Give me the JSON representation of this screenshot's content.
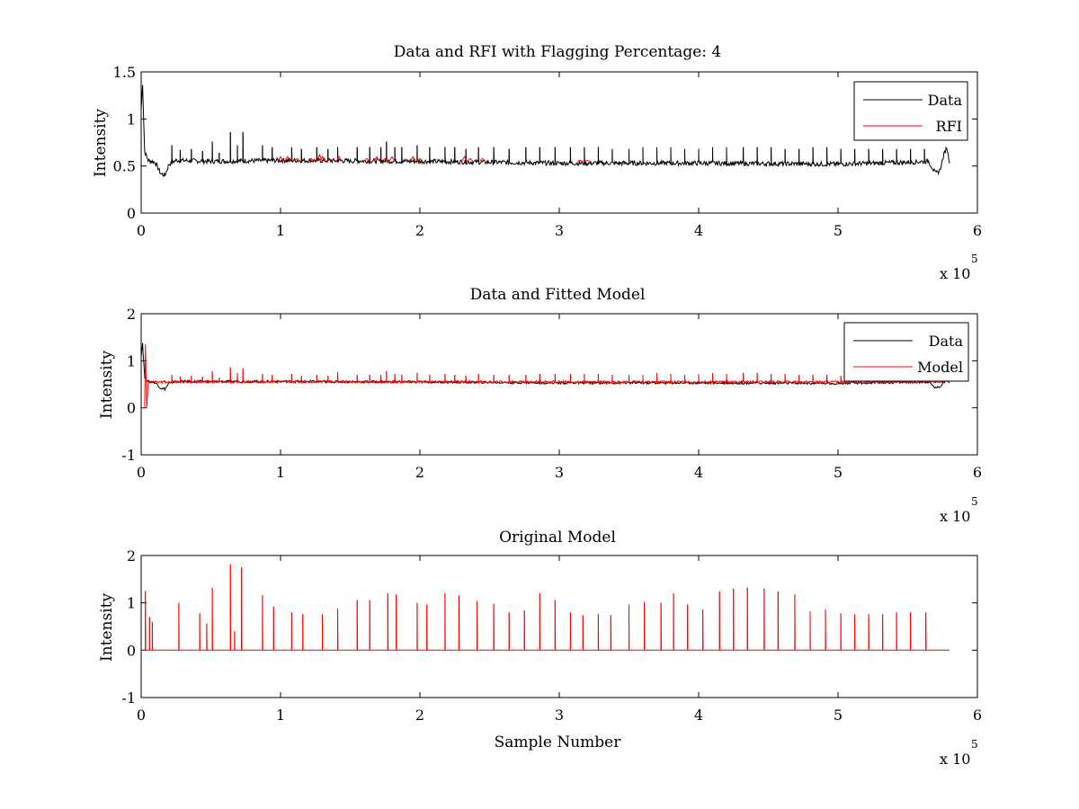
{
  "figure": {
    "background": "#ffffff",
    "colors": {
      "data": "#000000",
      "rfi": "#ff0000",
      "model": "#ff0000"
    }
  },
  "chart_data": [
    {
      "type": "line",
      "title": "Data and RFI with Flagging Percentage: 4",
      "xlabel": "",
      "ylabel": "Intensity",
      "xlim": [
        0,
        6
      ],
      "ylim": [
        0,
        1.5
      ],
      "x_multiplier": "x 10",
      "x_multiplier_exponent": "5",
      "xticks": [
        "0",
        "1",
        "2",
        "3",
        "4",
        "5",
        "6"
      ],
      "yticks": [
        "0",
        "0.5",
        "1",
        "1.5"
      ],
      "ytick_values": [
        0,
        0.5,
        1,
        1.5
      ],
      "legend": {
        "position": "top-right",
        "entries": [
          "Data",
          "RFI"
        ]
      },
      "grid": false,
      "baseline": 0.55,
      "series": [
        {
          "name": "Data",
          "color": "#000000",
          "points": [
            [
              0,
              1.1
            ],
            [
              0.01,
              1.38
            ],
            [
              0.025,
              0.65
            ],
            [
              0.05,
              0.56
            ],
            [
              0.1,
              0.54
            ],
            [
              0.14,
              0.42
            ],
            [
              0.17,
              0.4
            ],
            [
              0.2,
              0.52
            ],
            [
              0.25,
              0.56
            ],
            [
              0.5,
              0.55
            ],
            [
              1.0,
              0.56
            ],
            [
              2.0,
              0.55
            ],
            [
              3.0,
              0.53
            ],
            [
              4.0,
              0.53
            ],
            [
              5.0,
              0.52
            ],
            [
              5.5,
              0.54
            ],
            [
              5.65,
              0.55
            ],
            [
              5.7,
              0.42
            ],
            [
              5.73,
              0.45
            ],
            [
              5.76,
              0.62
            ],
            [
              5.78,
              0.7
            ],
            [
              5.8,
              0.55
            ]
          ],
          "spikes_x": [
            0.22,
            0.28,
            0.36,
            0.44,
            0.51,
            0.56,
            0.64,
            0.69,
            0.73,
            0.87,
            0.94,
            1.08,
            1.15,
            1.26,
            1.34,
            1.41,
            1.55,
            1.64,
            1.72,
            1.76,
            1.82,
            1.87,
            1.98,
            2.07,
            2.18,
            2.25,
            2.33,
            2.42,
            2.53,
            2.64,
            2.76,
            2.86,
            2.97,
            3.08,
            3.18,
            3.28,
            3.38,
            3.5,
            3.6,
            3.7,
            3.8,
            3.9,
            4.0,
            4.1,
            4.2,
            4.32,
            4.42,
            4.52,
            4.62,
            4.72,
            4.82,
            4.92,
            5.02,
            5.12,
            5.22,
            5.32,
            5.42,
            5.52,
            5.62
          ],
          "spikes_y": [
            0.72,
            0.67,
            0.68,
            0.66,
            0.76,
            0.64,
            0.86,
            0.72,
            0.86,
            0.72,
            0.7,
            0.7,
            0.68,
            0.7,
            0.68,
            0.7,
            0.7,
            0.7,
            0.7,
            0.76,
            0.7,
            0.7,
            0.72,
            0.7,
            0.7,
            0.7,
            0.68,
            0.7,
            0.7,
            0.68,
            0.7,
            0.7,
            0.7,
            0.7,
            0.7,
            0.7,
            0.68,
            0.68,
            0.7,
            0.7,
            0.7,
            0.68,
            0.68,
            0.7,
            0.7,
            0.7,
            0.7,
            0.7,
            0.68,
            0.68,
            0.7,
            0.7,
            0.68,
            0.68,
            0.68,
            0.68,
            0.68,
            0.68,
            0.68
          ]
        },
        {
          "name": "RFI",
          "color": "#ff0000",
          "segments": [
            [
              1.0,
              0.6
            ],
            [
              1.05,
              0.6
            ],
            [
              1.12,
              0.58
            ],
            [
              1.22,
              0.58
            ],
            [
              1.28,
              0.62
            ],
            [
              1.3,
              0.6
            ],
            [
              1.35,
              0.58
            ],
            [
              1.42,
              0.6
            ],
            [
              1.62,
              0.58
            ],
            [
              1.69,
              0.6
            ],
            [
              1.75,
              0.58
            ],
            [
              1.8,
              0.6
            ],
            [
              1.95,
              0.6
            ],
            [
              2.0,
              0.58
            ],
            [
              2.32,
              0.6
            ],
            [
              2.36,
              0.58
            ],
            [
              2.45,
              0.58
            ],
            [
              3.15,
              0.56
            ],
            [
              3.2,
              0.56
            ]
          ]
        }
      ]
    },
    {
      "type": "line",
      "title": "Data and Fitted Model",
      "xlabel": "",
      "ylabel": "Intensity",
      "xlim": [
        0,
        6
      ],
      "ylim": [
        -1,
        2
      ],
      "x_multiplier": "x 10",
      "x_multiplier_exponent": "5",
      "xticks": [
        "0",
        "1",
        "2",
        "3",
        "4",
        "5",
        "6"
      ],
      "yticks": [
        "-1",
        "0",
        "1",
        "2"
      ],
      "ytick_values": [
        -1,
        0,
        1,
        2
      ],
      "legend": {
        "position": "top-right",
        "entries": [
          "Data",
          "Model"
        ]
      },
      "grid": false,
      "baseline": 0.55,
      "series": [
        {
          "name": "Data",
          "color": "#000000",
          "points": [
            [
              0,
              1.1
            ],
            [
              0.01,
              1.38
            ],
            [
              0.025,
              0.65
            ],
            [
              0.05,
              0.56
            ],
            [
              0.1,
              0.54
            ],
            [
              0.14,
              0.42
            ],
            [
              0.17,
              0.4
            ],
            [
              0.2,
              0.52
            ],
            [
              0.25,
              0.56
            ],
            [
              1.0,
              0.56
            ],
            [
              2.0,
              0.55
            ],
            [
              3.0,
              0.53
            ],
            [
              4.0,
              0.53
            ],
            [
              5.0,
              0.52
            ],
            [
              5.65,
              0.55
            ],
            [
              5.7,
              0.42
            ],
            [
              5.73,
              0.45
            ],
            [
              5.78,
              0.62
            ],
            [
              5.8,
              0.55
            ]
          ]
        },
        {
          "name": "Model",
          "color": "#ff0000",
          "lead_in": [
            [
              0,
              0
            ],
            [
              0.025,
              0
            ],
            [
              0.03,
              1.35
            ],
            [
              0.04,
              0
            ],
            [
              0.05,
              0.55
            ]
          ],
          "spikes_x": [
            0.22,
            0.28,
            0.36,
            0.44,
            0.51,
            0.56,
            0.64,
            0.69,
            0.73,
            0.87,
            0.94,
            1.08,
            1.15,
            1.26,
            1.34,
            1.41,
            1.55,
            1.64,
            1.72,
            1.76,
            1.82,
            1.87,
            1.98,
            2.07,
            2.18,
            2.25,
            2.33,
            2.42,
            2.53,
            2.64,
            2.76,
            2.86,
            2.97,
            3.08,
            3.18,
            3.28,
            3.38,
            3.5,
            3.6,
            3.7,
            3.8,
            3.9,
            4.0,
            4.1,
            4.2,
            4.32,
            4.42,
            4.52,
            4.62,
            4.72,
            4.82,
            4.92,
            5.02,
            5.12,
            5.22,
            5.32,
            5.42,
            5.52,
            5.62
          ],
          "spikes_y": [
            0.7,
            0.66,
            0.68,
            0.66,
            0.78,
            0.64,
            0.86,
            0.74,
            0.84,
            0.72,
            0.7,
            0.72,
            0.68,
            0.7,
            0.68,
            0.76,
            0.7,
            0.7,
            0.7,
            0.78,
            0.72,
            0.7,
            0.74,
            0.7,
            0.72,
            0.7,
            0.68,
            0.72,
            0.7,
            0.7,
            0.7,
            0.72,
            0.72,
            0.72,
            0.72,
            0.72,
            0.7,
            0.7,
            0.7,
            0.74,
            0.72,
            0.7,
            0.72,
            0.74,
            0.72,
            0.74,
            0.74,
            0.72,
            0.72,
            0.7,
            0.7,
            0.7,
            0.68,
            0.68,
            0.7,
            0.7,
            0.68,
            0.7,
            0.68
          ]
        }
      ]
    },
    {
      "type": "line",
      "title": "Original Model",
      "xlabel": "Sample Number",
      "ylabel": "Intensity",
      "xlim": [
        0,
        6
      ],
      "ylim": [
        -1,
        2
      ],
      "x_multiplier": "x 10",
      "x_multiplier_exponent": "5",
      "xticks": [
        "0",
        "1",
        "2",
        "3",
        "4",
        "5",
        "6"
      ],
      "yticks": [
        "-1",
        "0",
        "1",
        "2"
      ],
      "ytick_values": [
        -1,
        0,
        1,
        2
      ],
      "grid": false,
      "baseline": 0,
      "series": [
        {
          "color": "#ff0000",
          "x_end": 5.8,
          "spikes_x": [
            0.03,
            0.06,
            0.08,
            0.27,
            0.42,
            0.47,
            0.51,
            0.64,
            0.67,
            0.72,
            0.87,
            0.95,
            1.08,
            1.16,
            1.3,
            1.41,
            1.55,
            1.64,
            1.77,
            1.83,
            1.98,
            2.05,
            2.18,
            2.28,
            2.41,
            2.53,
            2.64,
            2.75,
            2.86,
            2.97,
            3.08,
            3.17,
            3.28,
            3.37,
            3.5,
            3.61,
            3.73,
            3.82,
            3.92,
            4.03,
            4.15,
            4.25,
            4.35,
            4.47,
            4.57,
            4.69,
            4.8,
            4.91,
            5.02,
            5.12,
            5.22,
            5.32,
            5.42,
            5.52,
            5.63
          ],
          "spikes_y": [
            1.25,
            0.7,
            0.6,
            1.0,
            0.78,
            0.56,
            1.32,
            1.82,
            0.4,
            1.75,
            1.16,
            0.92,
            0.8,
            0.76,
            0.76,
            0.88,
            1.06,
            1.06,
            1.2,
            1.18,
            1.0,
            0.96,
            1.2,
            1.16,
            1.04,
            0.98,
            0.8,
            0.84,
            1.2,
            1.06,
            0.8,
            0.74,
            0.76,
            0.74,
            0.96,
            1.02,
            1.0,
            1.2,
            0.96,
            0.86,
            1.24,
            1.3,
            1.32,
            1.3,
            1.24,
            1.18,
            0.82,
            0.86,
            0.78,
            0.76,
            0.76,
            0.76,
            0.8,
            0.8,
            0.8
          ]
        }
      ]
    }
  ]
}
